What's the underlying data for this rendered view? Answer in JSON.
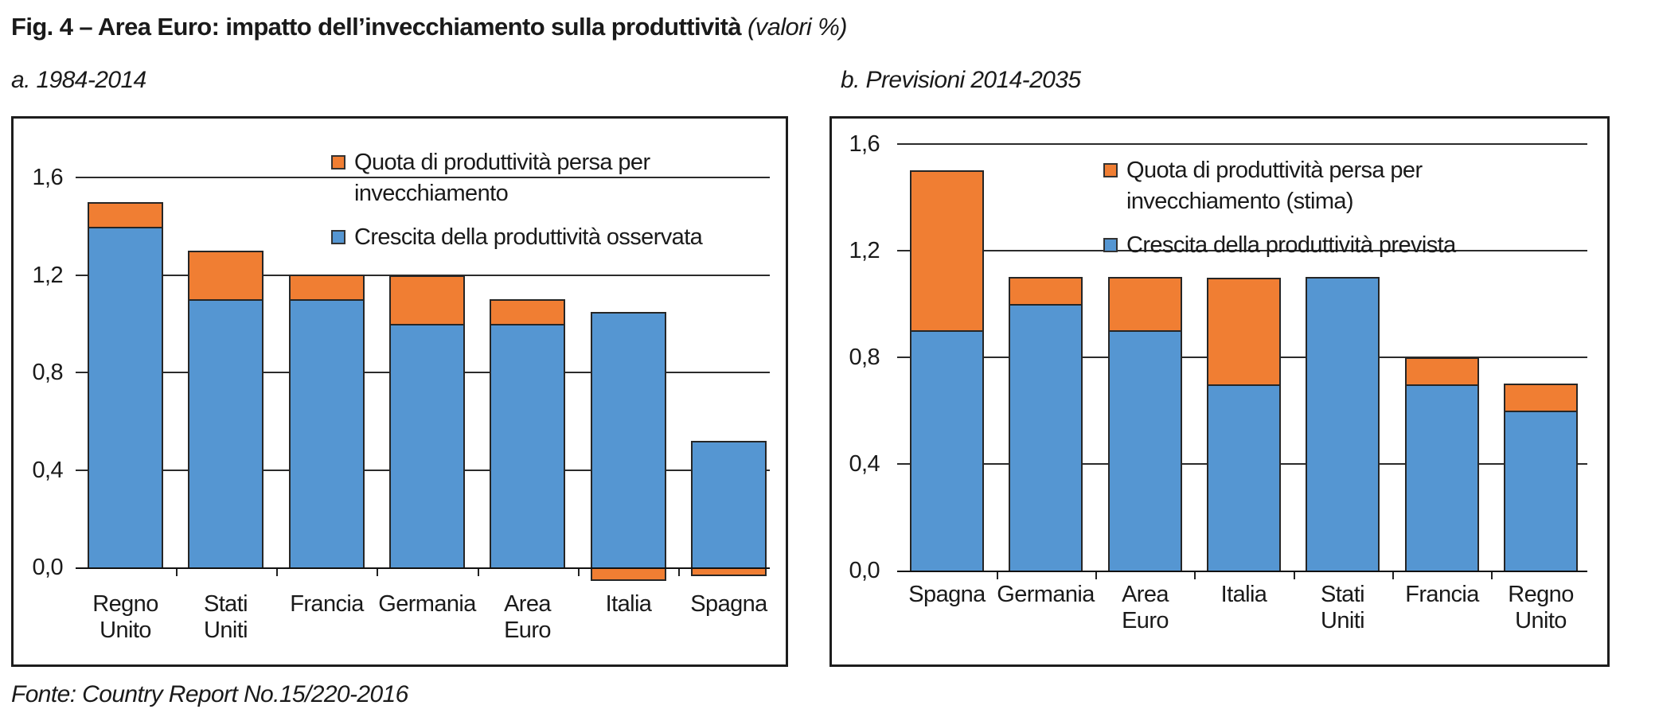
{
  "title": {
    "main": "Fig. 4 – Area Euro: impatto dell’invecchiamento sulla produttività",
    "suffix": " (valori %)"
  },
  "footer": "Fonte: Country Report No.15/220-2016",
  "colors": {
    "blue": "#5596D2",
    "orange": "#F07E33",
    "bar_border": "#262626",
    "grid": "#2b2b2b",
    "axis": "#111111"
  },
  "chart_data": [
    {
      "type": "bar",
      "stacked": true,
      "subtitle": "a. 1984-2014",
      "categories": [
        [
          "Regno",
          "Unito"
        ],
        [
          "Stati",
          "Uniti"
        ],
        [
          "Francia"
        ],
        [
          "Germania"
        ],
        [
          "Area",
          "Euro"
        ],
        [
          "Italia"
        ],
        [
          "Spagna"
        ]
      ],
      "series": [
        {
          "name": "Crescita della produttività osservata",
          "color_key": "blue",
          "values": [
            1.4,
            1.1,
            1.1,
            1.0,
            1.0,
            1.05,
            0.52
          ]
        },
        {
          "name": "Quota di produttività persa per invecchiamento",
          "color_key": "orange",
          "values": [
            0.1,
            0.2,
            0.1,
            0.2,
            0.1,
            -0.05,
            -0.03
          ]
        }
      ],
      "legend": [
        {
          "color_key": "orange",
          "label_lines": [
            "Quota di produttività persa per",
            "invecchiamento"
          ]
        },
        {
          "color_key": "blue",
          "label_lines": [
            "Crescita della produttività osservata"
          ]
        }
      ],
      "yticks": [
        {
          "v": 1.6,
          "label": "1,6"
        },
        {
          "v": 1.2,
          "label": "1,2"
        },
        {
          "v": 0.8,
          "label": "0,8"
        },
        {
          "v": 0.4,
          "label": "0,4"
        },
        {
          "v": 0.0,
          "label": "0,0"
        }
      ],
      "ylim": [
        -0.1,
        1.85
      ],
      "grid": true,
      "legend_position": "inside-top-right"
    },
    {
      "type": "bar",
      "stacked": true,
      "subtitle": "b. Previsioni 2014-2035",
      "categories": [
        [
          "Spagna"
        ],
        [
          "Germania"
        ],
        [
          "Area",
          "Euro"
        ],
        [
          "Italia"
        ],
        [
          "Stati",
          "Uniti"
        ],
        [
          "Francia"
        ],
        [
          "Regno",
          "Unito"
        ]
      ],
      "series": [
        {
          "name": "Crescita della produttività prevista",
          "color_key": "blue",
          "values": [
            0.9,
            1.0,
            0.9,
            0.7,
            1.1,
            0.7,
            0.6
          ]
        },
        {
          "name": "Quota di produttività persa per invecchiamento (stima)",
          "color_key": "orange",
          "values": [
            0.6,
            0.1,
            0.2,
            0.4,
            0.0,
            0.1,
            0.1
          ]
        }
      ],
      "legend": [
        {
          "color_key": "orange",
          "label_lines": [
            "Quota di produttività persa per",
            "invecchiamento (stima)"
          ]
        },
        {
          "color_key": "blue",
          "label_lines": [
            "Crescita della produttività prevista"
          ]
        }
      ],
      "yticks": [
        {
          "v": 1.6,
          "label": "1,6"
        },
        {
          "v": 1.2,
          "label": "1,2"
        },
        {
          "v": 0.8,
          "label": "0,8"
        },
        {
          "v": 0.4,
          "label": "0,4"
        },
        {
          "v": 0.0,
          "label": "0,0"
        }
      ],
      "ylim": [
        -0.05,
        1.7
      ],
      "grid": true,
      "legend_position": "inside-top-right"
    }
  ]
}
